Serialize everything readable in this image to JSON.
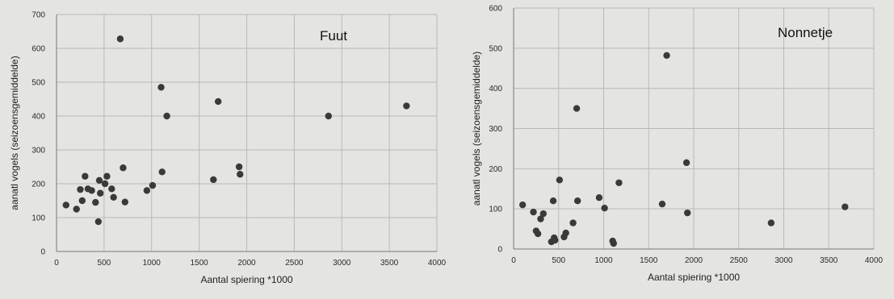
{
  "chart_data": [
    {
      "type": "scatter",
      "title": "Fuut",
      "xlabel": "Aantal spiering *1000",
      "ylabel": "aanatl vogels (seizoensgemiddelde)",
      "xlim": [
        0,
        4000
      ],
      "ylim": [
        0,
        700
      ],
      "xticks": [
        0,
        500,
        1000,
        1500,
        2000,
        2500,
        3000,
        3500,
        4000
      ],
      "yticks": [
        0,
        100,
        200,
        300,
        400,
        500,
        600,
        700
      ],
      "grid": true,
      "legend": "none",
      "points": [
        [
          100,
          137
        ],
        [
          210,
          125
        ],
        [
          250,
          183
        ],
        [
          270,
          150
        ],
        [
          300,
          222
        ],
        [
          330,
          185
        ],
        [
          370,
          180
        ],
        [
          410,
          145
        ],
        [
          440,
          88
        ],
        [
          450,
          210
        ],
        [
          460,
          172
        ],
        [
          510,
          200
        ],
        [
          530,
          222
        ],
        [
          580,
          185
        ],
        [
          600,
          160
        ],
        [
          670,
          628
        ],
        [
          700,
          247
        ],
        [
          720,
          146
        ],
        [
          950,
          180
        ],
        [
          1010,
          195
        ],
        [
          1100,
          485
        ],
        [
          1110,
          235
        ],
        [
          1160,
          400
        ],
        [
          1650,
          212
        ],
        [
          1700,
          443
        ],
        [
          1920,
          250
        ],
        [
          1930,
          228
        ],
        [
          2860,
          400
        ],
        [
          3680,
          430
        ]
      ]
    },
    {
      "type": "scatter",
      "title": "Nonnetje",
      "xlabel": "Aantal spiering *1000",
      "ylabel": "aanatl vogels (seizoensgemiddelde)",
      "xlim": [
        0,
        4000
      ],
      "ylim": [
        0,
        600
      ],
      "xticks": [
        0,
        500,
        1000,
        1500,
        2000,
        2500,
        3000,
        3500,
        4000
      ],
      "yticks": [
        0,
        100,
        200,
        300,
        400,
        500,
        600
      ],
      "grid": true,
      "legend": "none",
      "points": [
        [
          100,
          110
        ],
        [
          220,
          92
        ],
        [
          250,
          45
        ],
        [
          270,
          38
        ],
        [
          300,
          75
        ],
        [
          330,
          88
        ],
        [
          420,
          18
        ],
        [
          440,
          120
        ],
        [
          450,
          28
        ],
        [
          460,
          22
        ],
        [
          510,
          172
        ],
        [
          560,
          30
        ],
        [
          580,
          40
        ],
        [
          660,
          65
        ],
        [
          700,
          350
        ],
        [
          710,
          120
        ],
        [
          950,
          128
        ],
        [
          1010,
          102
        ],
        [
          1100,
          20
        ],
        [
          1110,
          14
        ],
        [
          1170,
          165
        ],
        [
          1650,
          112
        ],
        [
          1700,
          482
        ],
        [
          1920,
          215
        ],
        [
          1930,
          90
        ],
        [
          2860,
          65
        ],
        [
          3680,
          105
        ]
      ]
    }
  ]
}
